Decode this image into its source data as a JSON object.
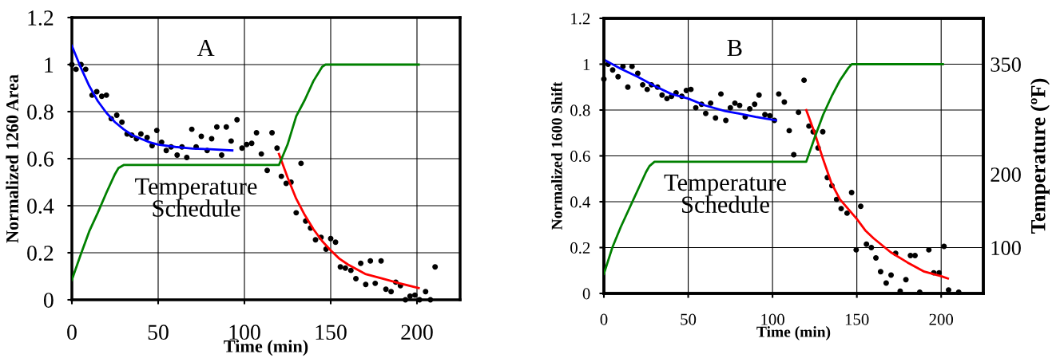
{
  "chart_data": [
    {
      "type": "scatter",
      "xlabel": "Time (min)",
      "ylabel": "Normalized 1260 Area",
      "xlim": [
        0,
        225
      ],
      "xticks": [
        0,
        50,
        100,
        150,
        200
      ],
      "ylim": [
        0,
        1.2
      ],
      "yticks": [
        0,
        0.2,
        0.4,
        0.6,
        0.8,
        1,
        1.2
      ],
      "grid": true,
      "legend": false,
      "annotations": [
        "A",
        "Temperature\nSchedule"
      ],
      "series": [
        {
          "marker": "circle",
          "color": "#000000",
          "x": [
            0,
            2.4,
            5.3,
            8,
            11.7,
            14.4,
            17.3,
            20,
            22.8,
            26,
            29,
            32,
            34.7,
            37.4,
            40,
            43.6,
            46.5,
            49.2,
            52,
            54.7,
            57.5,
            61,
            63.8,
            66.6,
            69.5,
            72,
            75,
            78.4,
            81,
            84,
            86.8,
            89.5,
            92.3,
            95.7,
            98.6,
            101.3,
            104.2,
            107,
            109.8,
            113.2,
            116,
            118.9,
            121.4,
            124.2,
            127,
            130,
            132.8,
            135.5,
            138.3,
            141.2,
            144.4,
            147.3,
            150,
            152.8,
            155.6,
            158.5,
            161.7,
            164.6,
            167.4,
            170.3,
            173,
            175.8,
            179.2,
            182,
            185,
            187.7,
            190.4,
            193.3,
            196,
            198.8,
            201.5,
            205,
            207.8,
            210.5
          ],
          "values": [
            1.0,
            0.98,
            1.0,
            0.98,
            0.87,
            0.885,
            0.865,
            0.87,
            0.77,
            0.785,
            0.755,
            0.705,
            0.7,
            0.685,
            0.705,
            0.69,
            0.655,
            0.72,
            0.67,
            0.635,
            0.65,
            0.615,
            0.65,
            0.605,
            0.725,
            0.65,
            0.695,
            0.635,
            0.685,
            0.735,
            0.615,
            0.735,
            0.675,
            0.765,
            0.645,
            0.66,
            0.665,
            0.71,
            0.62,
            0.55,
            0.71,
            0.645,
            0.525,
            0.495,
            0.5,
            0.37,
            0.58,
            0.335,
            0.305,
            0.255,
            0.265,
            0.215,
            0.26,
            0.245,
            0.14,
            0.135,
            0.125,
            0.09,
            0.155,
            0.065,
            0.165,
            0.07,
            0.165,
            0.045,
            0.035,
            0.075,
            0.06,
            0.0,
            0.015,
            0.02,
            0.0,
            0.035,
            0.0,
            0.14
          ]
        },
        {
          "type": "line",
          "color": "#0000ff",
          "x": [
            0,
            5,
            10,
            15,
            20,
            25,
            30,
            35,
            40,
            45,
            50,
            60,
            70,
            80,
            93
          ],
          "values": [
            1.08,
            0.99,
            0.91,
            0.845,
            0.795,
            0.755,
            0.725,
            0.7,
            0.685,
            0.67,
            0.66,
            0.65,
            0.643,
            0.64,
            0.635
          ]
        },
        {
          "type": "line",
          "color": "#ff0000",
          "x": [
            120,
            125,
            130,
            135,
            140,
            145,
            150,
            155,
            160,
            170,
            180,
            190,
            201
          ],
          "values": [
            0.62,
            0.52,
            0.43,
            0.36,
            0.3,
            0.25,
            0.21,
            0.175,
            0.15,
            0.11,
            0.09,
            0.07,
            0.05
          ]
        },
        {
          "type": "line",
          "color": "#008000",
          "x": [
            0,
            5,
            10,
            15,
            20,
            25,
            27,
            30,
            120,
            125,
            130,
            135,
            140,
            145,
            147,
            201
          ],
          "values": [
            0.085,
            0.19,
            0.29,
            0.37,
            0.455,
            0.535,
            0.56,
            0.573,
            0.573,
            0.66,
            0.78,
            0.85,
            0.93,
            0.99,
            1.0,
            1.0
          ]
        }
      ]
    },
    {
      "type": "scatter",
      "xlabel": "Time (min)",
      "ylabel": "Normalized 1600 Shift",
      "y2label": "Temperature (ºF)",
      "xlim": [
        0,
        225
      ],
      "xticks": [
        0,
        50,
        100,
        150,
        200
      ],
      "ylim": [
        0,
        1.2
      ],
      "yticks": [
        0,
        0.2,
        0.4,
        0.6,
        0.8,
        1,
        1.2
      ],
      "y2lim": [
        37.5,
        412.5
      ],
      "y2ticks": [
        100,
        200,
        350
      ],
      "grid": true,
      "legend": false,
      "annotations": [
        "B",
        "Temperature\nSchedule"
      ],
      "series": [
        {
          "marker": "circle",
          "color": "#000000",
          "x": [
            0,
            2.5,
            5.2,
            8.4,
            11.3,
            14.2,
            16.7,
            20.1,
            23,
            25.7,
            28.2,
            31.8,
            34.5,
            37.4,
            40.1,
            42.8,
            46.2,
            48.9,
            51.6,
            54.5,
            57.9,
            60.4,
            63.3,
            66.2,
            69.4,
            72.3,
            75,
            77.7,
            80.5,
            83.8,
            86.5,
            89.4,
            92,
            95.5,
            98.4,
            101.1,
            103.7,
            107,
            109.9,
            112.6,
            115.4,
            118.7,
            121.6,
            124.1,
            127,
            129.8,
            132.5,
            135.2,
            138,
            140.7,
            144.2,
            146.9,
            149.6,
            152.3,
            155.7,
            158.6,
            161.3,
            164.1,
            167.4,
            170.3,
            173,
            175.7,
            179.1,
            181.8,
            184.5,
            187.3,
            192.7,
            195.6,
            198.8,
            201.7,
            204.4,
            210.4
          ],
          "values": [
            0.935,
            1.0,
            0.975,
            0.945,
            0.99,
            0.9,
            0.99,
            0.96,
            0.91,
            0.89,
            0.91,
            0.9,
            0.865,
            0.85,
            0.86,
            0.875,
            0.86,
            0.885,
            0.89,
            0.81,
            0.825,
            0.785,
            0.83,
            0.765,
            0.87,
            0.755,
            0.81,
            0.83,
            0.82,
            0.77,
            0.805,
            0.825,
            0.865,
            0.78,
            0.775,
            0.755,
            0.87,
            0.835,
            0.71,
            0.605,
            0.79,
            0.93,
            0.73,
            0.705,
            0.635,
            0.705,
            0.505,
            0.47,
            0.41,
            0.37,
            0.35,
            0.44,
            0.19,
            0.38,
            0.215,
            0.2,
            0.155,
            0.095,
            0.045,
            0.08,
            0.175,
            0.01,
            0.06,
            0.165,
            0.165,
            0.005,
            0.19,
            0.09,
            0.09,
            0.205,
            0.015,
            0.005
          ]
        },
        {
          "type": "line",
          "color": "#0000ff",
          "x": [
            0,
            10,
            20,
            30,
            40,
            50,
            60,
            72,
            80,
            90,
            102
          ],
          "values": [
            1.02,
            0.98,
            0.945,
            0.905,
            0.87,
            0.85,
            0.82,
            0.795,
            0.785,
            0.77,
            0.755
          ]
        },
        {
          "type": "line",
          "color": "#ff0000",
          "x": [
            120,
            125,
            130,
            135,
            140,
            150,
            155,
            160,
            170,
            180,
            190,
            200,
            204
          ],
          "values": [
            0.8,
            0.7,
            0.585,
            0.48,
            0.41,
            0.325,
            0.275,
            0.24,
            0.18,
            0.135,
            0.095,
            0.075,
            0.065
          ]
        },
        {
          "type": "line",
          "axis": "y2",
          "color": "#008000",
          "x": [
            0,
            5,
            10,
            15,
            20,
            25,
            27,
            30,
            120,
            125,
            130,
            135,
            140,
            145,
            147,
            201
          ],
          "values": [
            64,
            100,
            128,
            153,
            178,
            203,
            211,
            217,
            217,
            250,
            281,
            306,
            328,
            345,
            350,
            350
          ]
        }
      ]
    }
  ]
}
